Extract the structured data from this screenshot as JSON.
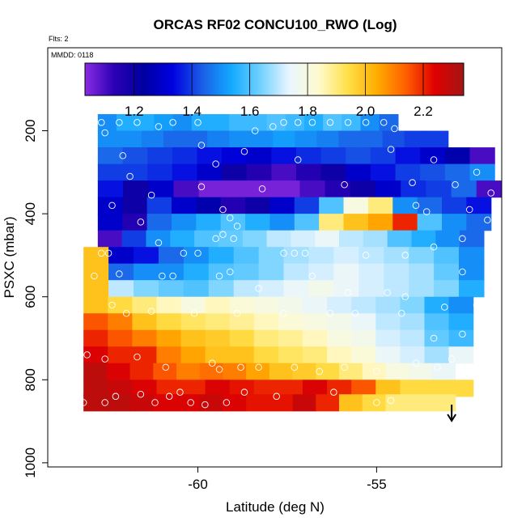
{
  "chart_data": {
    "type": "heatmap",
    "title": "ORCAS RF02 CONCU100_RWO (Log)",
    "annotations": [
      "Flts: 2",
      "MMDD: 0118"
    ],
    "xlabel": "Latitude (deg N)",
    "ylabel": "PSXC (mbar)",
    "xlim": [
      -64.2,
      -51.5
    ],
    "ylim": [
      1010,
      0
    ],
    "x_ticks": [
      -60,
      -55
    ],
    "y_ticks": [
      200,
      400,
      600,
      800,
      1000
    ],
    "colorbar": {
      "range": [
        1.03,
        2.34
      ],
      "ticks": [
        1.2,
        1.4,
        1.6,
        1.8,
        2.0,
        2.2
      ],
      "position": "top-inside",
      "colors": [
        "#8a2be2",
        "#2b00b5",
        "#0000a0",
        "#0000e0",
        "#1a5ce6",
        "#12a8ff",
        "#6fd0ff",
        "#e8f5ff",
        "#fffbd0",
        "#ffe14a",
        "#ffae00",
        "#ff6000",
        "#e00000",
        "#a41515"
      ]
    },
    "rows": [
      {
        "p": 180,
        "x0": -62.8,
        "x1": -54.4,
        "v": [
          1.5,
          1.55,
          1.55,
          1.52,
          1.5,
          1.55,
          1.55,
          1.58,
          1.58,
          1.6,
          1.58,
          1.55,
          1.6,
          1.58,
          1.5,
          1.45
        ]
      },
      {
        "p": 220,
        "x0": -62.8,
        "x1": -53.0,
        "v": [
          1.5,
          1.5,
          1.48,
          1.45,
          1.45,
          1.48,
          1.5,
          1.5,
          1.52,
          1.5,
          1.48,
          1.45,
          1.45,
          1.42,
          1.4,
          1.4
        ]
      },
      {
        "p": 260,
        "x0": -62.8,
        "x1": -51.7,
        "v": [
          1.45,
          1.42,
          1.4,
          1.38,
          1.35,
          1.32,
          1.3,
          1.35,
          1.38,
          1.4,
          1.42,
          1.4,
          1.35,
          1.3,
          1.25,
          1.1
        ]
      },
      {
        "p": 300,
        "x0": -62.8,
        "x1": -51.7,
        "v": [
          1.4,
          1.4,
          1.38,
          1.35,
          1.3,
          1.2,
          1.15,
          1.1,
          1.15,
          1.2,
          1.3,
          1.35,
          1.4,
          1.42,
          1.45,
          1.5
        ]
      },
      {
        "p": 340,
        "x0": -62.8,
        "x1": -51.5,
        "v": [
          1.35,
          1.2,
          1.3,
          1.1,
          1.05,
          1.05,
          1.05,
          1.05,
          1.1,
          1.15,
          1.2,
          1.3,
          1.38,
          1.4,
          1.45,
          1.1
        ]
      },
      {
        "p": 380,
        "x0": -62.8,
        "x1": -51.8,
        "v": [
          1.3,
          1.2,
          1.4,
          1.3,
          1.25,
          1.15,
          1.2,
          1.3,
          1.4,
          1.6,
          1.8,
          1.9,
          1.5,
          1.45,
          1.4,
          1.35
        ]
      },
      {
        "p": 420,
        "x0": -62.8,
        "x1": -51.8,
        "v": [
          1.3,
          1.15,
          1.45,
          1.5,
          1.55,
          1.6,
          1.55,
          1.5,
          1.6,
          1.9,
          2.0,
          2.05,
          2.2,
          1.6,
          1.5,
          1.45
        ]
      },
      {
        "p": 460,
        "x0": -62.8,
        "x1": -52.0,
        "v": [
          1.1,
          1.4,
          1.5,
          1.55,
          1.6,
          1.62,
          1.65,
          1.7,
          1.72,
          1.75,
          1.7,
          1.68,
          1.6,
          1.55,
          1.5,
          1.45
        ]
      },
      {
        "p": 500,
        "x0": -63.2,
        "x1": -52.0,
        "v": [
          2.0,
          1.3,
          1.35,
          1.45,
          1.5,
          1.55,
          1.6,
          1.65,
          1.68,
          1.7,
          1.72,
          1.7,
          1.68,
          1.65,
          1.6,
          1.5
        ]
      },
      {
        "p": 540,
        "x0": -63.2,
        "x1": -52.0,
        "v": [
          2.0,
          1.45,
          1.5,
          1.5,
          1.55,
          1.6,
          1.62,
          1.65,
          1.7,
          1.72,
          1.75,
          1.72,
          1.7,
          1.68,
          1.62,
          1.5
        ]
      },
      {
        "p": 580,
        "x0": -63.2,
        "x1": -52.0,
        "v": [
          2.0,
          1.7,
          1.65,
          1.62,
          1.6,
          1.65,
          1.7,
          1.72,
          1.75,
          1.78,
          1.75,
          1.72,
          1.7,
          1.68,
          1.65,
          1.55
        ]
      },
      {
        "p": 620,
        "x0": -63.2,
        "x1": -52.3,
        "v": [
          2.0,
          1.95,
          1.9,
          1.85,
          1.8,
          1.85,
          1.82,
          1.8,
          1.78,
          1.75,
          1.72,
          1.7,
          1.68,
          1.65,
          1.55,
          1.5
        ]
      },
      {
        "p": 660,
        "x0": -63.2,
        "x1": -52.3,
        "v": [
          2.15,
          2.1,
          2.0,
          1.95,
          1.92,
          1.9,
          1.88,
          1.85,
          1.82,
          1.8,
          1.78,
          1.75,
          1.7,
          1.68,
          1.6,
          1.55
        ]
      },
      {
        "p": 700,
        "x0": -63.2,
        "x1": -52.3,
        "v": [
          2.2,
          2.15,
          2.1,
          2.05,
          2.0,
          1.98,
          1.95,
          1.9,
          1.88,
          1.85,
          1.8,
          1.78,
          1.72,
          1.7,
          1.62,
          1.58
        ]
      },
      {
        "p": 740,
        "x0": -63.2,
        "x1": -52.3,
        "v": [
          2.25,
          2.2,
          2.2,
          2.1,
          2.05,
          2.0,
          2.0,
          1.95,
          1.92,
          1.9,
          1.85,
          1.82,
          1.75,
          1.72,
          1.68,
          1.75
        ]
      },
      {
        "p": 780,
        "x0": -63.2,
        "x1": -52.8,
        "v": [
          2.3,
          2.25,
          2.2,
          2.15,
          2.1,
          2.12,
          2.1,
          2.05,
          2.0,
          1.98,
          1.95,
          1.9,
          1.85,
          1.8,
          1.78,
          1.75
        ]
      },
      {
        "p": 820,
        "x0": -63.2,
        "x1": -52.3,
        "v": [
          2.3,
          2.28,
          2.25,
          2.2,
          2.2,
          2.25,
          2.22,
          2.2,
          2.2,
          2.25,
          2.2,
          2.15,
          2.0,
          1.95,
          1.95,
          1.95
        ]
      },
      {
        "p": 855,
        "x0": -63.2,
        "x1": -52.8,
        "v": [
          2.3,
          2.3,
          2.28,
          2.25,
          2.25,
          2.28,
          2.25,
          2.22,
          2.22,
          2.28,
          2.2,
          2.0,
          1.95,
          1.9,
          1.9,
          1.9
        ]
      }
    ],
    "points": [
      [
        -62.7,
        180
      ],
      [
        -62.2,
        180
      ],
      [
        -61.7,
        180
      ],
      [
        -60.7,
        180
      ],
      [
        -60.0,
        180
      ],
      [
        -57.6,
        180
      ],
      [
        -57.2,
        180
      ],
      [
        -56.8,
        180
      ],
      [
        -56.3,
        180
      ],
      [
        -55.8,
        180
      ],
      [
        -55.3,
        180
      ],
      [
        -54.8,
        180
      ],
      [
        -62.6,
        205
      ],
      [
        -61.1,
        190
      ],
      [
        -58.4,
        200
      ],
      [
        -57.9,
        190
      ],
      [
        -54.5,
        195
      ],
      [
        -59.9,
        235
      ],
      [
        -58.7,
        250
      ],
      [
        -54.6,
        245
      ],
      [
        -62.1,
        260
      ],
      [
        -59.5,
        280
      ],
      [
        -57.2,
        270
      ],
      [
        -53.4,
        270
      ],
      [
        -61.9,
        310
      ],
      [
        -59.9,
        335
      ],
      [
        -58.2,
        340
      ],
      [
        -55.9,
        330
      ],
      [
        -54.0,
        325
      ],
      [
        -52.8,
        330
      ],
      [
        -52.2,
        300
      ],
      [
        -51.8,
        350
      ],
      [
        -61.3,
        355
      ],
      [
        -62.4,
        380
      ],
      [
        -61.6,
        420
      ],
      [
        -59.3,
        390
      ],
      [
        -59.1,
        410
      ],
      [
        -58.9,
        430
      ],
      [
        -53.9,
        380
      ],
      [
        -53.6,
        395
      ],
      [
        -52.4,
        390
      ],
      [
        -51.9,
        415
      ],
      [
        -61.1,
        470
      ],
      [
        -62.7,
        495
      ],
      [
        -62.5,
        495
      ],
      [
        -60.4,
        495
      ],
      [
        -60.0,
        495
      ],
      [
        -59.5,
        460
      ],
      [
        -59.3,
        450
      ],
      [
        -59.0,
        460
      ],
      [
        -57.6,
        495
      ],
      [
        -57.3,
        495
      ],
      [
        -57.0,
        495
      ],
      [
        -55.3,
        500
      ],
      [
        -54.2,
        500
      ],
      [
        -53.4,
        480
      ],
      [
        -52.6,
        460
      ],
      [
        -62.9,
        550
      ],
      [
        -62.2,
        545
      ],
      [
        -61.0,
        550
      ],
      [
        -60.7,
        550
      ],
      [
        -59.4,
        550
      ],
      [
        -59.1,
        540
      ],
      [
        -58.3,
        580
      ],
      [
        -56.8,
        550
      ],
      [
        -55.8,
        590
      ],
      [
        -54.7,
        590
      ],
      [
        -54.2,
        600
      ],
      [
        -52.6,
        540
      ],
      [
        -62.4,
        620
      ],
      [
        -62.0,
        640
      ],
      [
        -61.3,
        635
      ],
      [
        -60.1,
        640
      ],
      [
        -58.9,
        640
      ],
      [
        -57.6,
        640
      ],
      [
        -56.3,
        640
      ],
      [
        -55.6,
        640
      ],
      [
        -54.3,
        640
      ],
      [
        -53.1,
        625
      ],
      [
        -52.2,
        620
      ],
      [
        -52.6,
        690
      ],
      [
        -53.4,
        700
      ],
      [
        -63.1,
        740
      ],
      [
        -62.6,
        750
      ],
      [
        -61.7,
        745
      ],
      [
        -60.9,
        770
      ],
      [
        -59.6,
        760
      ],
      [
        -59.4,
        775
      ],
      [
        -58.8,
        770
      ],
      [
        -58.3,
        770
      ],
      [
        -57.3,
        770
      ],
      [
        -56.6,
        780
      ],
      [
        -55.9,
        770
      ],
      [
        -55.0,
        780
      ],
      [
        -53.9,
        760
      ],
      [
        -53.3,
        770
      ],
      [
        -52.9,
        750
      ],
      [
        -63.2,
        855
      ],
      [
        -62.6,
        855
      ],
      [
        -62.3,
        840
      ],
      [
        -61.6,
        835
      ],
      [
        -61.2,
        855
      ],
      [
        -60.8,
        840
      ],
      [
        -60.5,
        830
      ],
      [
        -60.2,
        855
      ],
      [
        -59.8,
        860
      ],
      [
        -59.2,
        855
      ],
      [
        -58.7,
        830
      ],
      [
        -57.8,
        840
      ],
      [
        -56.2,
        830
      ],
      [
        -55.0,
        855
      ],
      [
        -54.6,
        850
      ]
    ],
    "arrow_x": -52.9
  }
}
